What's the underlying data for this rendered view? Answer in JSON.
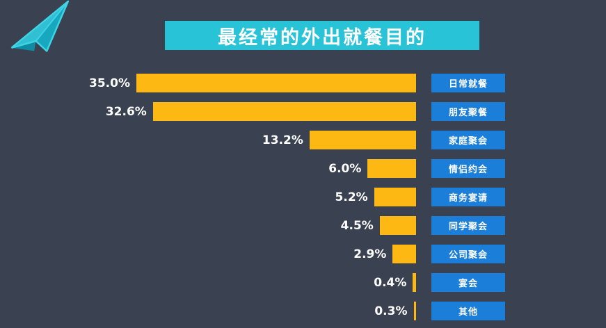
{
  "title_banner": {
    "text": "最经常的外出就餐目的",
    "background_color": "#29c3d7",
    "text_color": "#ffffff"
  },
  "logo_icon": "paper-plane-icon",
  "colors": {
    "background": "#3a4150",
    "bar": "#fdb813",
    "category_box": "#1b7ed8",
    "accent_teal": "#29c3d7"
  },
  "chart_data": {
    "type": "bar",
    "orientation": "horizontal",
    "title": "最经常的外出就餐目的",
    "xlabel": "",
    "ylabel": "",
    "xlim": [
      0,
      35
    ],
    "grid": false,
    "legend_position": "none",
    "bars_aligned": "right",
    "categories": [
      "日常就餐",
      "朋友聚餐",
      "家庭聚会",
      "情侣约会",
      "商务宴请",
      "同学聚会",
      "公司聚会",
      "宴会",
      "其他"
    ],
    "values": [
      35.0,
      32.6,
      13.2,
      6.0,
      5.2,
      4.5,
      2.9,
      0.4,
      0.3
    ],
    "value_labels": [
      "35.0%",
      "32.6%",
      "13.2%",
      "6.0%",
      "5.2%",
      "4.5%",
      "2.9%",
      "0.4%",
      "0.3%"
    ]
  }
}
